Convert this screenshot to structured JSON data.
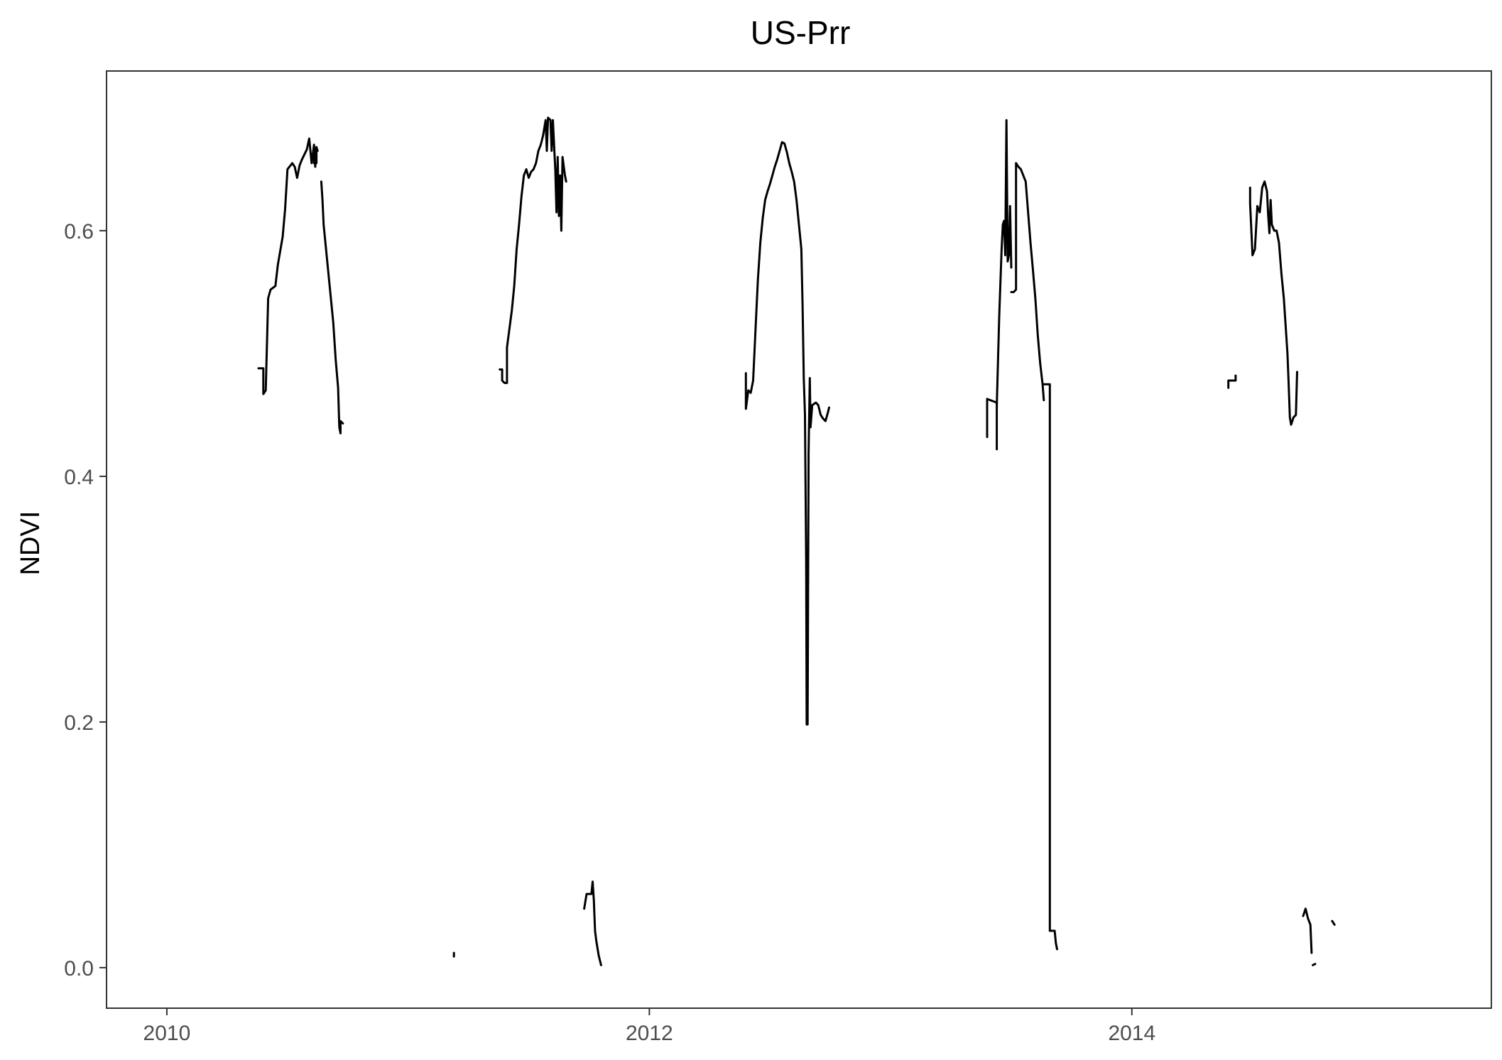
{
  "chart_data": {
    "type": "line",
    "title": "US-Prr",
    "xlabel": "",
    "ylabel": "NDVI",
    "xlim": [
      2009.75,
      2015.49
    ],
    "ylim": [
      -0.033,
      0.73
    ],
    "xticks": [
      2010,
      2012,
      2014
    ],
    "xtick_labels": [
      "2010",
      "2012",
      "2014"
    ],
    "yticks": [
      0.0,
      0.2,
      0.4,
      0.6
    ],
    "ytick_labels": [
      "0.0",
      "0.2",
      "0.4",
      "0.6"
    ],
    "grid": false,
    "line_color": "#000000",
    "series": [
      {
        "segments": [
          [
            [
              2010.38,
              0.488
            ],
            [
              2010.4,
              0.488
            ],
            [
              2010.4,
              0.467
            ],
            [
              2010.41,
              0.47
            ],
            [
              2010.42,
              0.545
            ],
            [
              2010.43,
              0.552
            ],
            [
              2010.45,
              0.555
            ],
            [
              2010.46,
              0.572
            ],
            [
              2010.48,
              0.595
            ],
            [
              2010.49,
              0.617
            ],
            [
              2010.5,
              0.65
            ],
            [
              2010.52,
              0.655
            ],
            [
              2010.53,
              0.652
            ],
            [
              2010.54,
              0.643
            ],
            [
              2010.55,
              0.653
            ],
            [
              2010.56,
              0.658
            ],
            [
              2010.57,
              0.662
            ],
            [
              2010.58,
              0.666
            ],
            [
              2010.59,
              0.675
            ],
            [
              2010.6,
              0.655
            ],
            [
              2010.61,
              0.67
            ],
            [
              2010.615,
              0.652
            ],
            [
              2010.62,
              0.668
            ],
            [
              2010.625,
              0.665
            ]
          ],
          [
            [
              2010.61,
              0.655
            ],
            [
              2010.61,
              0.665
            ]
          ],
          [
            [
              2010.62,
              0.655
            ],
            [
              2010.62,
              0.668
            ]
          ],
          [
            [
              2010.64,
              0.64
            ],
            [
              2010.645,
              0.625
            ],
            [
              2010.65,
              0.605
            ],
            [
              2010.66,
              0.585
            ],
            [
              2010.67,
              0.565
            ],
            [
              2010.68,
              0.545
            ],
            [
              2010.69,
              0.525
            ],
            [
              2010.7,
              0.495
            ],
            [
              2010.71,
              0.472
            ],
            [
              2010.715,
              0.44
            ],
            [
              2010.72,
              0.435
            ],
            [
              2010.72,
              0.445
            ],
            [
              2010.73,
              0.443
            ]
          ],
          [
            [
              2011.19,
              0.012
            ],
            [
              2011.19,
              0.009
            ]
          ],
          [
            [
              2011.38,
              0.487
            ],
            [
              2011.39,
              0.487
            ],
            [
              2011.39,
              0.478
            ],
            [
              2011.4,
              0.476
            ],
            [
              2011.41,
              0.476
            ],
            [
              2011.41,
              0.505
            ],
            [
              2011.42,
              0.52
            ],
            [
              2011.43,
              0.535
            ],
            [
              2011.44,
              0.555
            ],
            [
              2011.45,
              0.585
            ],
            [
              2011.46,
              0.605
            ],
            [
              2011.47,
              0.628
            ],
            [
              2011.48,
              0.645
            ],
            [
              2011.49,
              0.65
            ],
            [
              2011.5,
              0.643
            ],
            [
              2011.51,
              0.648
            ],
            [
              2011.52,
              0.65
            ],
            [
              2011.53,
              0.655
            ],
            [
              2011.54,
              0.665
            ],
            [
              2011.55,
              0.67
            ],
            [
              2011.56,
              0.678
            ],
            [
              2011.57,
              0.69
            ],
            [
              2011.575,
              0.665
            ],
            [
              2011.58,
              0.692
            ],
            [
              2011.59,
              0.69
            ],
            [
              2011.595,
              0.665
            ],
            [
              2011.6,
              0.69
            ],
            [
              2011.61,
              0.65
            ],
            [
              2011.615,
              0.615
            ],
            [
              2011.62,
              0.66
            ],
            [
              2011.625,
              0.612
            ],
            [
              2011.63,
              0.645
            ],
            [
              2011.635,
              0.6
            ],
            [
              2011.64,
              0.66
            ],
            [
              2011.65,
              0.645
            ],
            [
              2011.655,
              0.64
            ]
          ],
          [
            [
              2011.73,
              0.048
            ],
            [
              2011.74,
              0.06
            ],
            [
              2011.76,
              0.06
            ],
            [
              2011.765,
              0.07
            ],
            [
              2011.77,
              0.055
            ],
            [
              2011.775,
              0.03
            ],
            [
              2011.78,
              0.022
            ],
            [
              2011.79,
              0.01
            ],
            [
              2011.8,
              0.002
            ]
          ],
          [
            [
              2012.4,
              0.484
            ],
            [
              2012.4,
              0.455
            ],
            [
              2012.41,
              0.47
            ],
            [
              2012.42,
              0.468
            ],
            [
              2012.43,
              0.478
            ],
            [
              2012.44,
              0.52
            ],
            [
              2012.45,
              0.56
            ],
            [
              2012.46,
              0.59
            ],
            [
              2012.47,
              0.61
            ],
            [
              2012.48,
              0.625
            ],
            [
              2012.49,
              0.632
            ],
            [
              2012.5,
              0.638
            ],
            [
              2012.51,
              0.645
            ],
            [
              2012.52,
              0.652
            ],
            [
              2012.53,
              0.658
            ],
            [
              2012.54,
              0.665
            ],
            [
              2012.55,
              0.672
            ],
            [
              2012.56,
              0.671
            ],
            [
              2012.57,
              0.664
            ],
            [
              2012.58,
              0.655
            ],
            [
              2012.59,
              0.648
            ],
            [
              2012.6,
              0.64
            ],
            [
              2012.61,
              0.625
            ],
            [
              2012.62,
              0.605
            ],
            [
              2012.63,
              0.585
            ],
            [
              2012.635,
              0.54
            ],
            [
              2012.64,
              0.48
            ],
            [
              2012.645,
              0.45
            ],
            [
              2012.65,
              0.33
            ],
            [
              2012.652,
              0.198
            ],
            [
              2012.656,
              0.198
            ],
            [
              2012.66,
              0.42
            ],
            [
              2012.665,
              0.48
            ],
            [
              2012.668,
              0.44
            ],
            [
              2012.675,
              0.458
            ],
            [
              2012.69,
              0.46
            ],
            [
              2012.7,
              0.458
            ],
            [
              2012.71,
              0.45
            ],
            [
              2012.72,
              0.447
            ],
            [
              2012.73,
              0.445
            ],
            [
              2012.74,
              0.452
            ],
            [
              2012.745,
              0.456
            ]
          ],
          [
            [
              2013.4,
              0.432
            ],
            [
              2013.4,
              0.463
            ],
            [
              2013.44,
              0.46
            ],
            [
              2013.44,
              0.422
            ]
          ],
          [
            [
              2013.44,
              0.458
            ],
            [
              2013.45,
              0.53
            ],
            [
              2013.46,
              0.585
            ],
            [
              2013.465,
              0.605
            ],
            [
              2013.47,
              0.608
            ],
            [
              2013.475,
              0.58
            ],
            [
              2013.48,
              0.69
            ],
            [
              2013.485,
              0.575
            ],
            [
              2013.49,
              0.58
            ],
            [
              2013.495,
              0.62
            ],
            [
              2013.5,
              0.57
            ]
          ],
          [
            [
              2013.5,
              0.55
            ],
            [
              2013.51,
              0.55
            ],
            [
              2013.52,
              0.552
            ],
            [
              2013.52,
              0.655
            ],
            [
              2013.53,
              0.652
            ],
            [
              2013.54,
              0.65
            ],
            [
              2013.55,
              0.645
            ],
            [
              2013.56,
              0.64
            ],
            [
              2013.57,
              0.615
            ],
            [
              2013.58,
              0.59
            ],
            [
              2013.59,
              0.568
            ],
            [
              2013.6,
              0.545
            ],
            [
              2013.61,
              0.515
            ],
            [
              2013.62,
              0.492
            ],
            [
              2013.63,
              0.475
            ],
            [
              2013.635,
              0.462
            ]
          ],
          [
            [
              2013.635,
              0.475
            ],
            [
              2013.66,
              0.475
            ],
            [
              2013.66,
              0.03
            ],
            [
              2013.68,
              0.03
            ],
            [
              2013.685,
              0.02
            ],
            [
              2013.69,
              0.015
            ]
          ],
          [
            [
              2014.4,
              0.472
            ],
            [
              2014.4,
              0.478
            ],
            [
              2014.43,
              0.478
            ],
            [
              2014.43,
              0.482
            ]
          ],
          [
            [
              2014.49,
              0.635
            ],
            [
              2014.49,
              0.622
            ],
            [
              2014.5,
              0.58
            ],
            [
              2014.51,
              0.585
            ],
            [
              2014.52,
              0.62
            ],
            [
              2014.53,
              0.615
            ],
            [
              2014.54,
              0.635
            ],
            [
              2014.55,
              0.64
            ],
            [
              2014.56,
              0.632
            ],
            [
              2014.565,
              0.612
            ],
            [
              2014.57,
              0.598
            ],
            [
              2014.575,
              0.625
            ],
            [
              2014.58,
              0.605
            ],
            [
              2014.59,
              0.6
            ],
            [
              2014.6,
              0.6
            ],
            [
              2014.61,
              0.59
            ],
            [
              2014.62,
              0.565
            ],
            [
              2014.63,
              0.545
            ],
            [
              2014.64,
              0.515
            ],
            [
              2014.645,
              0.5
            ],
            [
              2014.65,
              0.475
            ],
            [
              2014.655,
              0.448
            ],
            [
              2014.66,
              0.442
            ],
            [
              2014.665,
              0.445
            ],
            [
              2014.67,
              0.448
            ],
            [
              2014.68,
              0.45
            ],
            [
              2014.685,
              0.485
            ]
          ],
          [
            [
              2014.71,
              0.042
            ],
            [
              2014.72,
              0.048
            ],
            [
              2014.73,
              0.04
            ],
            [
              2014.74,
              0.035
            ],
            [
              2014.745,
              0.012
            ]
          ],
          [
            [
              2014.75,
              0.002
            ],
            [
              2014.76,
              0.003
            ]
          ],
          [
            [
              2014.83,
              0.038
            ],
            [
              2014.84,
              0.035
            ]
          ]
        ]
      }
    ]
  }
}
